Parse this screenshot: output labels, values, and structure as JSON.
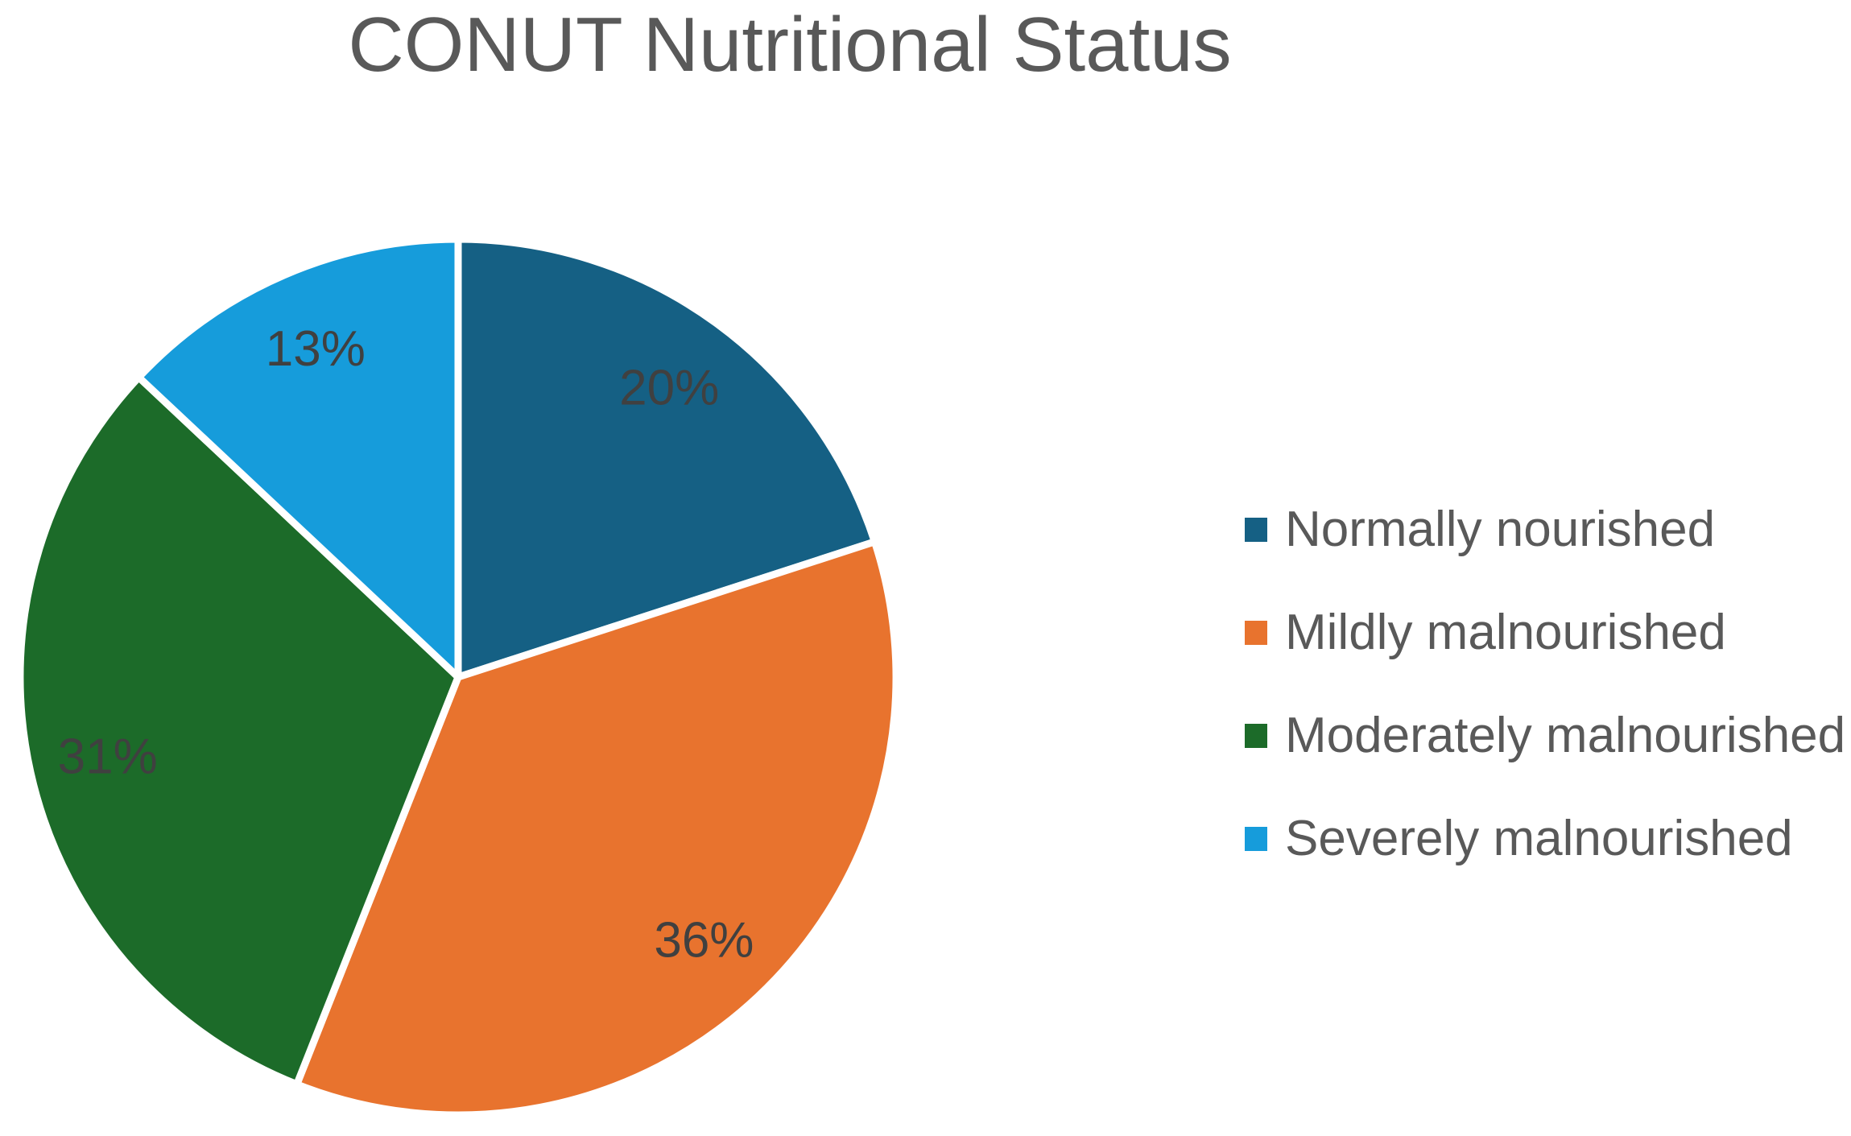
{
  "page": {
    "background_color": "#ffffff"
  },
  "chart_data": {
    "type": "pie",
    "title": "CONUT Nutritional Status",
    "title_color": "#595959",
    "data_label_color": "#404040",
    "legend_text_color": "#595959",
    "legend_position": "right",
    "start_angle_deg": 0,
    "direction": "clockwise",
    "data_labels": "percent",
    "separator_color": "#ffffff",
    "slices": [
      {
        "label": "Normally nourished",
        "value": 20,
        "percent_label": "20%",
        "color": "#156084"
      },
      {
        "label": "Mildly malnourished",
        "value": 36,
        "percent_label": "36%",
        "color": "#E8732E"
      },
      {
        "label": "Moderately malnourished",
        "value": 31,
        "percent_label": "31%",
        "color": "#1C6B29"
      },
      {
        "label": "Severely malnourished",
        "value": 13,
        "percent_label": "13%",
        "color": "#169CDB"
      }
    ]
  }
}
